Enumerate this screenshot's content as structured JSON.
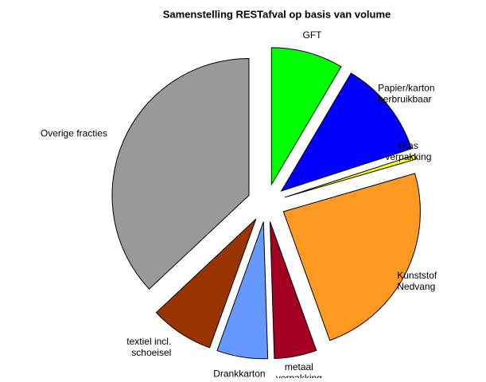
{
  "chart_data": {
    "type": "pie",
    "title": "Samenstelling  RESTafval op basis van volume",
    "categories": [
      "GFT",
      "Papier/karton\nherbruikbaar",
      "Glas\nverpakking",
      "Kunststof\nNedvang",
      "metaal\nverpakking",
      "Drankkarton",
      "textiel incl.\nschoeisel",
      "Overige fracties"
    ],
    "values": [
      8.5,
      11.5,
      0.5,
      24,
      5,
      6,
      7.5,
      37
    ],
    "colors": [
      "#00ff00",
      "#0000ff",
      "#ffff00",
      "#ff9922",
      "#a50021",
      "#6699ff",
      "#993300",
      "#999999"
    ]
  }
}
